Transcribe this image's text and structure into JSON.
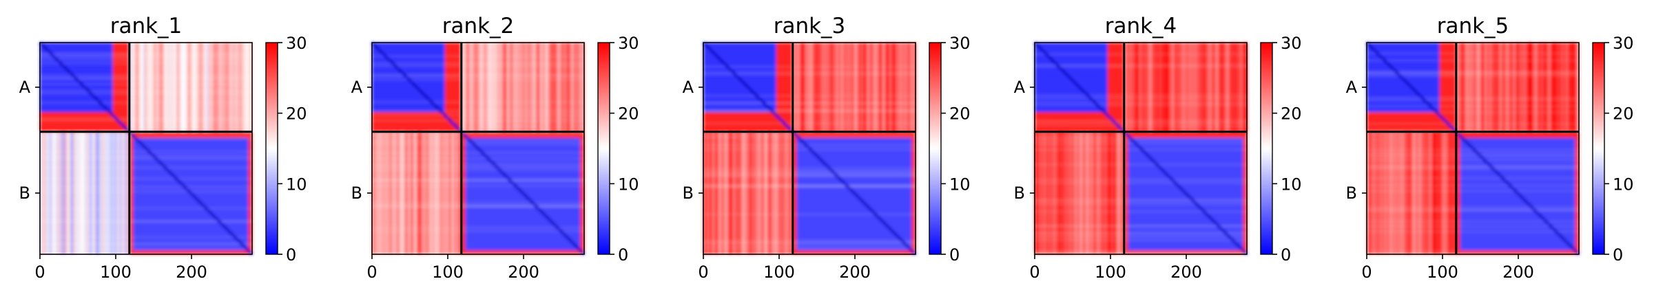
{
  "chart_data": [
    {
      "type": "heatmap",
      "title": "rank_1",
      "chain_labels": [
        "A",
        "B"
      ],
      "chain_lengths": [
        118,
        162
      ],
      "xlim": [
        0,
        280
      ],
      "xticks": [
        "0",
        "100",
        "200"
      ],
      "colorbar": {
        "min": 0,
        "max": 30,
        "ticks": [
          "0",
          "10",
          "20",
          "30"
        ],
        "colormap": "bwr"
      },
      "interchain_mean_value": 18
    },
    {
      "type": "heatmap",
      "title": "rank_2",
      "chain_labels": [
        "A",
        "B"
      ],
      "chain_lengths": [
        118,
        162
      ],
      "xlim": [
        0,
        280
      ],
      "xticks": [
        "0",
        "100",
        "200"
      ],
      "colorbar": {
        "min": 0,
        "max": 30,
        "ticks": [
          "0",
          "10",
          "20",
          "30"
        ],
        "colormap": "bwr"
      },
      "interchain_mean_value": 22
    },
    {
      "type": "heatmap",
      "title": "rank_3",
      "chain_labels": [
        "A",
        "B"
      ],
      "chain_lengths": [
        118,
        162
      ],
      "xlim": [
        0,
        280
      ],
      "xticks": [
        "0",
        "100",
        "200"
      ],
      "colorbar": {
        "min": 0,
        "max": 30,
        "ticks": [
          "0",
          "10",
          "20",
          "30"
        ],
        "colormap": "bwr"
      },
      "interchain_mean_value": 25
    },
    {
      "type": "heatmap",
      "title": "rank_4",
      "chain_labels": [
        "A",
        "B"
      ],
      "chain_lengths": [
        118,
        162
      ],
      "xlim": [
        0,
        280
      ],
      "xticks": [
        "0",
        "100",
        "200"
      ],
      "colorbar": {
        "min": 0,
        "max": 30,
        "ticks": [
          "0",
          "10",
          "20",
          "30"
        ],
        "colormap": "bwr"
      },
      "interchain_mean_value": 26
    },
    {
      "type": "heatmap",
      "title": "rank_5",
      "chain_labels": [
        "A",
        "B"
      ],
      "chain_lengths": [
        118,
        162
      ],
      "xlim": [
        0,
        280
      ],
      "xticks": [
        "0",
        "100",
        "200"
      ],
      "colorbar": {
        "min": 0,
        "max": 30,
        "ticks": [
          "0",
          "10",
          "20",
          "30"
        ],
        "colormap": "bwr"
      },
      "interchain_mean_value": 26
    }
  ]
}
